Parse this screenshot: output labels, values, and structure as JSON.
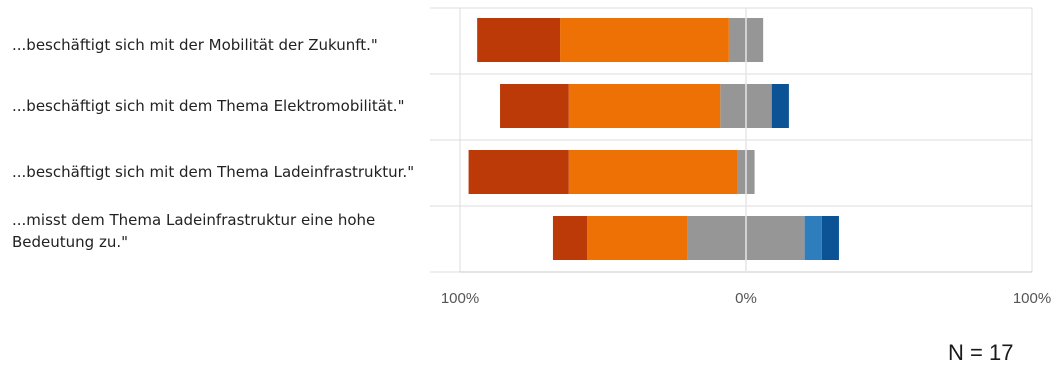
{
  "chart_data": {
    "type": "bar",
    "orientation": "horizontal",
    "stacked": "diverging",
    "title": "",
    "xlabel": "",
    "ylabel": "",
    "xlim": [
      -100,
      100
    ],
    "x_ticks": [
      -100,
      0,
      100
    ],
    "x_tick_labels": [
      "100%",
      "0%",
      "100%"
    ],
    "grid": true,
    "categories": [
      "...beschäftigt sich mit der Mobilität der Zukunft.\"",
      "...beschäftigt sich mit dem Thema Elektromobilität.\"",
      "...beschäftigt sich mit dem Thema Ladeinfrastruktur.\"",
      "...misst dem Thema Ladeinfrastruktur eine hohe Bedeutung zu.\""
    ],
    "neutral_series": {
      "color": "#969696",
      "values": [
        12,
        18,
        6,
        41
      ]
    },
    "negative_series": [
      {
        "color": "#ed7104",
        "values": [
          59,
          53,
          59,
          35
        ]
      },
      {
        "color": "#bc3908",
        "values": [
          29,
          24,
          35,
          12
        ]
      }
    ],
    "positive_series": [
      {
        "color": "#2e7ebe",
        "values": [
          0,
          0,
          0,
          6
        ]
      },
      {
        "color": "#0b5394",
        "values": [
          0,
          6,
          0,
          6
        ]
      }
    ]
  },
  "footer": {
    "n_label": "N = 17"
  }
}
